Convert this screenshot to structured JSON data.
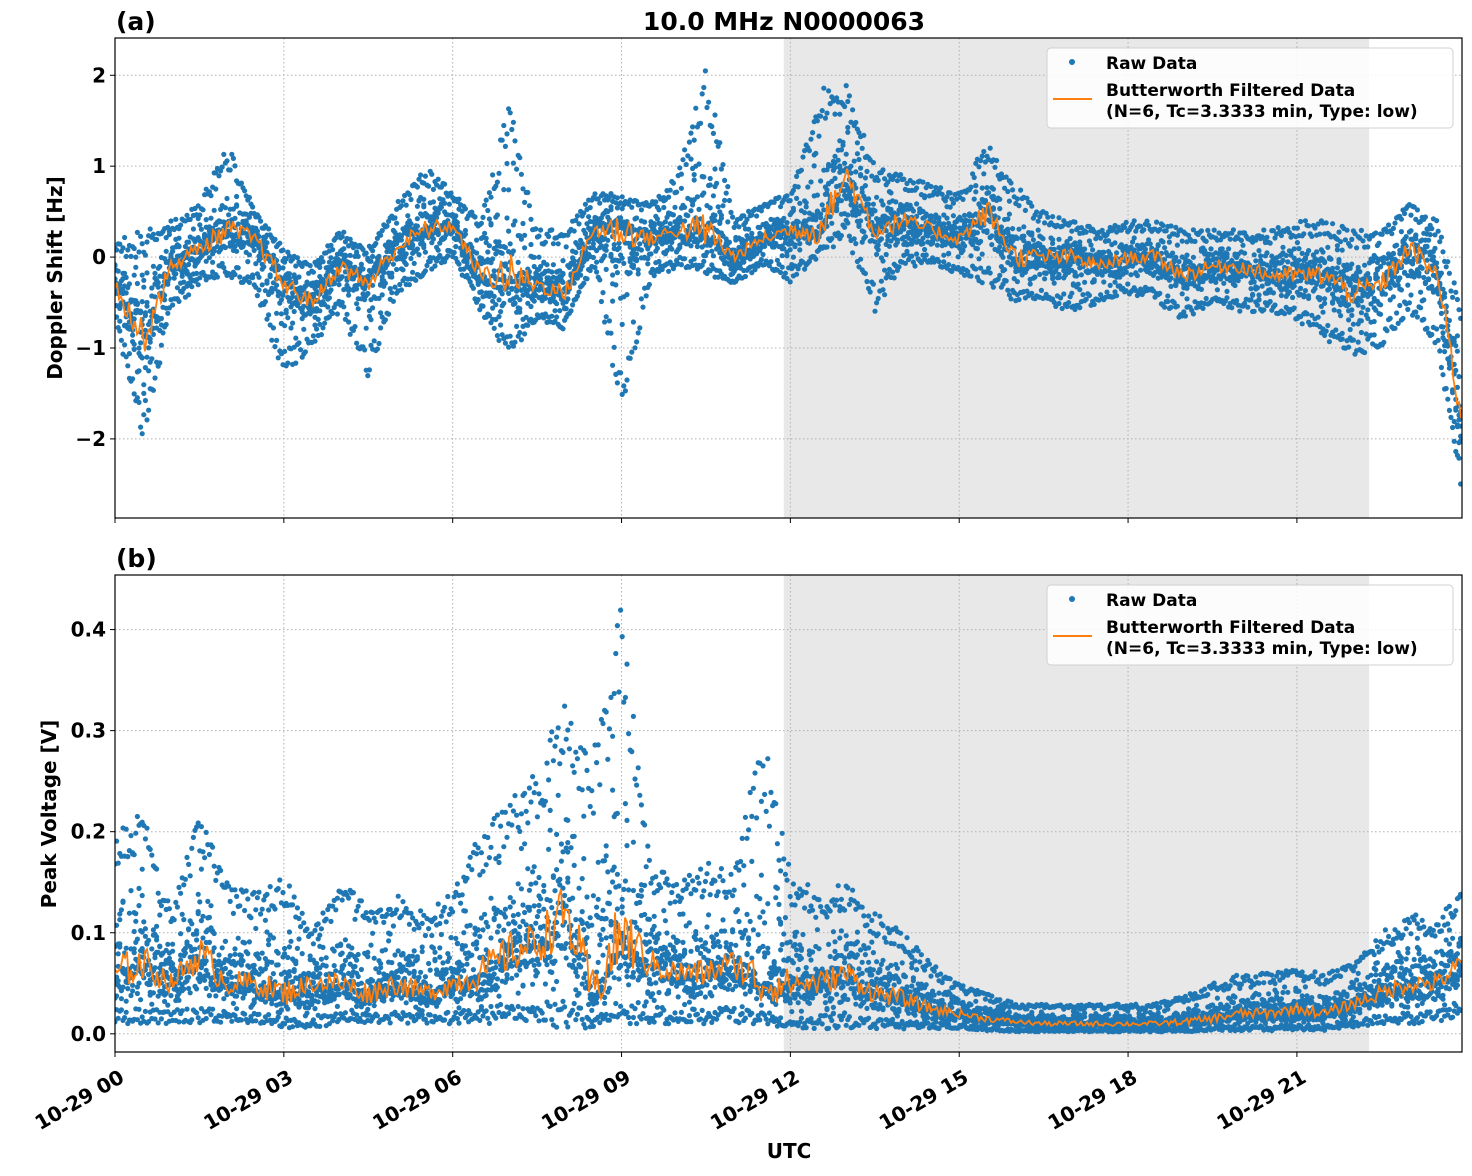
{
  "figure": {
    "title": "10.0 MHz N0000063",
    "xlabel": "UTC"
  },
  "colors": {
    "raw": "#1f77b4",
    "filtered": "#ff7f0e",
    "shade": "#e8e8e8",
    "grid": "#b0b0b0"
  },
  "chart_data": [
    {
      "type": "scatter",
      "panel_label": "(a)",
      "title": "10.0 MHz N0000063",
      "ylabel": "Doppler Shift [Hz]",
      "xlabel": "",
      "xlim": [
        "10-29 00:00",
        "10-29 23:56"
      ],
      "ylim": [
        -2.87,
        2.41
      ],
      "yticks": [
        -2,
        -1,
        0,
        1,
        2
      ],
      "ytick_labels": [
        "−2",
        "−1",
        "0",
        "1",
        "2"
      ],
      "xticks": [
        "10-29 00:00",
        "10-29 03:00",
        "10-29 06:00",
        "10-29 09:00",
        "10-29 12:00",
        "10-29 15:00",
        "10-29 18:00",
        "10-29 21:00"
      ],
      "xtick_labels": [
        "10-29 00",
        "10-29 03",
        "10-29 06",
        "10-29 09",
        "10-29 12",
        "10-29 15",
        "10-29 18",
        "10-29 21"
      ],
      "shaded_span": [
        "10-29 11:53",
        "10-29 22:17"
      ],
      "grid": true,
      "legend": {
        "placement": "upper right",
        "entries": [
          "Raw Data",
          "Butterworth Filtered Data",
          "(N=6, Tc=3.3333 min, Type: low)"
        ]
      },
      "x": [
        "10-29 00:00",
        "10-29 00:30",
        "10-29 01:00",
        "10-29 01:30",
        "10-29 02:00",
        "10-29 02:30",
        "10-29 03:00",
        "10-29 03:30",
        "10-29 04:00",
        "10-29 04:30",
        "10-29 05:00",
        "10-29 05:30",
        "10-29 06:00",
        "10-29 06:30",
        "10-29 07:00",
        "10-29 07:30",
        "10-29 08:00",
        "10-29 08:30",
        "10-29 09:00",
        "10-29 09:30",
        "10-29 10:00",
        "10-29 10:30",
        "10-29 11:00",
        "10-29 11:30",
        "10-29 12:00",
        "10-29 12:30",
        "10-29 13:00",
        "10-29 13:30",
        "10-29 14:00",
        "10-29 14:30",
        "10-29 15:00",
        "10-29 15:30",
        "10-29 16:00",
        "10-29 16:30",
        "10-29 17:00",
        "10-29 17:30",
        "10-29 18:00",
        "10-29 18:30",
        "10-29 19:00",
        "10-29 19:30",
        "10-29 20:00",
        "10-29 20:30",
        "10-29 21:00",
        "10-29 21:30",
        "10-29 22:00",
        "10-29 22:30",
        "10-29 23:00",
        "10-29 23:30",
        "10-29 23:56"
      ],
      "series": [
        {
          "name": "Butterworth Filtered Data",
          "role": "filtered",
          "values": [
            -0.3,
            -0.9,
            -0.1,
            0.1,
            0.3,
            0.2,
            -0.3,
            -0.5,
            -0.1,
            -0.3,
            0.1,
            0.3,
            0.35,
            -0.2,
            -0.2,
            -0.3,
            -0.4,
            0.3,
            0.3,
            0.2,
            0.3,
            0.3,
            0.0,
            0.2,
            0.3,
            0.3,
            0.9,
            0.3,
            0.4,
            0.3,
            0.2,
            0.5,
            0.0,
            0.0,
            0.0,
            -0.1,
            0.0,
            0.0,
            -0.2,
            -0.1,
            -0.1,
            -0.2,
            -0.2,
            -0.2,
            -0.4,
            -0.3,
            0.1,
            -0.2,
            -1.8
          ]
        },
        {
          "name": "Raw Data",
          "role": "raw-max",
          "values": [
            0.2,
            0.3,
            0.4,
            0.6,
            1.25,
            0.5,
            0.1,
            -0.1,
            0.3,
            0.1,
            0.6,
            1.0,
            0.75,
            0.4,
            1.75,
            0.3,
            0.3,
            0.7,
            0.7,
            0.6,
            0.9,
            2.15,
            0.4,
            0.6,
            0.7,
            1.9,
            1.9,
            1.0,
            0.9,
            0.8,
            0.7,
            1.3,
            0.8,
            0.5,
            0.4,
            0.3,
            0.4,
            0.4,
            0.3,
            0.3,
            0.3,
            0.3,
            0.4,
            0.4,
            0.3,
            0.3,
            0.6,
            0.4,
            -0.5
          ]
        },
        {
          "name": "Raw Data",
          "role": "raw-min",
          "values": [
            -0.7,
            -2.0,
            -0.6,
            -0.3,
            -0.2,
            -0.4,
            -1.3,
            -1.0,
            -0.6,
            -1.35,
            -0.4,
            -0.2,
            0.0,
            -0.6,
            -1.1,
            -0.7,
            -0.8,
            -0.1,
            -1.7,
            -0.3,
            -0.1,
            -0.2,
            -0.3,
            -0.1,
            -0.3,
            0.0,
            0.2,
            -0.6,
            -0.1,
            -0.1,
            -0.2,
            -0.3,
            -0.5,
            -0.5,
            -0.6,
            -0.5,
            -0.4,
            -0.5,
            -0.7,
            -0.5,
            -0.6,
            -0.6,
            -0.7,
            -0.9,
            -1.1,
            -1.0,
            -0.6,
            -1.0,
            -2.6
          ]
        }
      ]
    },
    {
      "type": "scatter",
      "panel_label": "(b)",
      "title": "",
      "ylabel": "Peak Voltage [V]",
      "xlabel": "UTC",
      "xlim": [
        "10-29 00:00",
        "10-29 23:56"
      ],
      "ylim": [
        -0.018,
        0.454
      ],
      "yticks": [
        0.0,
        0.1,
        0.2,
        0.3,
        0.4
      ],
      "ytick_labels": [
        "0.0",
        "0.1",
        "0.2",
        "0.3",
        "0.4"
      ],
      "xticks": [
        "10-29 00:00",
        "10-29 03:00",
        "10-29 06:00",
        "10-29 09:00",
        "10-29 12:00",
        "10-29 15:00",
        "10-29 18:00",
        "10-29 21:00"
      ],
      "xtick_labels": [
        "10-29 00",
        "10-29 03",
        "10-29 06",
        "10-29 09",
        "10-29 12",
        "10-29 15",
        "10-29 18",
        "10-29 21"
      ],
      "shaded_span": [
        "10-29 11:53",
        "10-29 22:17"
      ],
      "grid": true,
      "legend": {
        "placement": "upper right",
        "entries": [
          "Raw Data",
          "Butterworth Filtered Data",
          "(N=6, Tc=3.3333 min, Type: low)"
        ]
      },
      "x": [
        "10-29 00:00",
        "10-29 00:30",
        "10-29 01:00",
        "10-29 01:30",
        "10-29 02:00",
        "10-29 02:30",
        "10-29 03:00",
        "10-29 03:30",
        "10-29 04:00",
        "10-29 04:30",
        "10-29 05:00",
        "10-29 05:30",
        "10-29 06:00",
        "10-29 06:30",
        "10-29 07:00",
        "10-29 07:30",
        "10-29 08:00",
        "10-29 08:30",
        "10-29 09:00",
        "10-29 09:30",
        "10-29 10:00",
        "10-29 10:30",
        "10-29 11:00",
        "10-29 11:30",
        "10-29 12:00",
        "10-29 12:30",
        "10-29 13:00",
        "10-29 13:30",
        "10-29 14:00",
        "10-29 14:30",
        "10-29 15:00",
        "10-29 15:30",
        "10-29 16:00",
        "10-29 16:30",
        "10-29 17:00",
        "10-29 17:30",
        "10-29 18:00",
        "10-29 18:30",
        "10-29 19:00",
        "10-29 19:30",
        "10-29 20:00",
        "10-29 20:30",
        "10-29 21:00",
        "10-29 21:30",
        "10-29 22:00",
        "10-29 22:30",
        "10-29 23:00",
        "10-29 23:30",
        "10-29 23:56"
      ],
      "series": [
        {
          "name": "Butterworth Filtered Data",
          "role": "filtered",
          "values": [
            0.06,
            0.07,
            0.05,
            0.08,
            0.05,
            0.05,
            0.04,
            0.05,
            0.05,
            0.04,
            0.05,
            0.04,
            0.05,
            0.06,
            0.08,
            0.09,
            0.12,
            0.04,
            0.1,
            0.07,
            0.06,
            0.06,
            0.07,
            0.05,
            0.05,
            0.05,
            0.06,
            0.04,
            0.035,
            0.025,
            0.02,
            0.015,
            0.012,
            0.01,
            0.01,
            0.01,
            0.01,
            0.01,
            0.012,
            0.015,
            0.02,
            0.02,
            0.025,
            0.02,
            0.03,
            0.04,
            0.05,
            0.05,
            0.07
          ]
        },
        {
          "name": "Raw Data",
          "role": "raw-max",
          "values": [
            0.2,
            0.22,
            0.12,
            0.22,
            0.15,
            0.14,
            0.16,
            0.1,
            0.15,
            0.13,
            0.14,
            0.12,
            0.14,
            0.2,
            0.23,
            0.26,
            0.34,
            0.28,
            0.43,
            0.17,
            0.15,
            0.17,
            0.16,
            0.3,
            0.16,
            0.14,
            0.15,
            0.12,
            0.1,
            0.07,
            0.05,
            0.04,
            0.03,
            0.03,
            0.03,
            0.03,
            0.03,
            0.03,
            0.04,
            0.05,
            0.06,
            0.06,
            0.065,
            0.06,
            0.07,
            0.1,
            0.12,
            0.11,
            0.15
          ]
        },
        {
          "name": "Raw Data",
          "role": "raw-min",
          "values": [
            0.01,
            0.01,
            0.01,
            0.01,
            0.01,
            0.01,
            0.005,
            0.005,
            0.01,
            0.01,
            0.01,
            0.01,
            0.01,
            0.01,
            0.01,
            0.01,
            0.005,
            0.005,
            0.01,
            0.01,
            0.01,
            0.01,
            0.01,
            0.01,
            0.005,
            0.005,
            0.005,
            0.005,
            0.005,
            0.005,
            0.005,
            0.003,
            0.002,
            0.002,
            0.002,
            0.002,
            0.002,
            0.002,
            0.002,
            0.003,
            0.003,
            0.003,
            0.003,
            0.003,
            0.005,
            0.01,
            0.01,
            0.01,
            0.02
          ]
        }
      ]
    }
  ]
}
